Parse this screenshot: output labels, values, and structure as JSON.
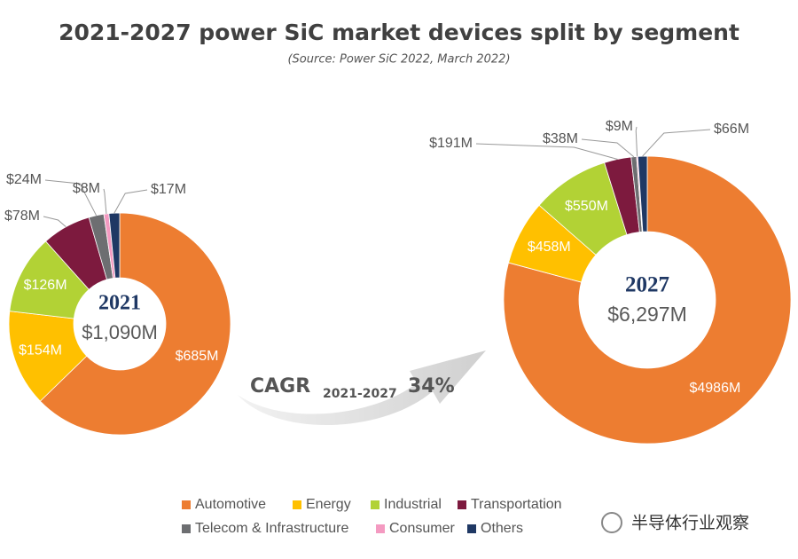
{
  "title": "2021-2027 power SiC market devices split by segment",
  "subtitle": "(Source: Power SiC 2022, March 2022)",
  "annotation": {
    "text": "CAGR",
    "subscript": "2021-2027",
    "value": "34%"
  },
  "watermark": "半导体行业观察",
  "chart_data": [
    {
      "type": "donut",
      "center_title": "2021",
      "center_label": "$1,090M",
      "categories": [
        "Automotive",
        "Energy",
        "Industrial",
        "Transportation",
        "Telecom & Infrastructure",
        "Consumer",
        "Others"
      ],
      "values": [
        685,
        154,
        126,
        78,
        24,
        8,
        17
      ],
      "value_labels": [
        "$685M",
        "$154M",
        "$126M",
        "$78M",
        "$24M",
        "$8M",
        "$17M"
      ],
      "colors": [
        "#ed7d31",
        "#ffc000",
        "#b2d235",
        "#7d1a3e",
        "#6d6e71",
        "#f49ac1",
        "#1f3864"
      ]
    },
    {
      "type": "donut",
      "center_title": "2027",
      "center_label": "$6,297M",
      "categories": [
        "Automotive",
        "Energy",
        "Industrial",
        "Transportation",
        "Telecom & Infrastructure",
        "Consumer",
        "Others"
      ],
      "values": [
        4986,
        458,
        550,
        191,
        38,
        9,
        66
      ],
      "value_labels": [
        "$4986M",
        "$458M",
        "$550M",
        "$191M",
        "$38M",
        "$9M",
        "$66M"
      ],
      "colors": [
        "#ed7d31",
        "#ffc000",
        "#b2d235",
        "#7d1a3e",
        "#6d6e71",
        "#f49ac1",
        "#1f3864"
      ]
    }
  ]
}
